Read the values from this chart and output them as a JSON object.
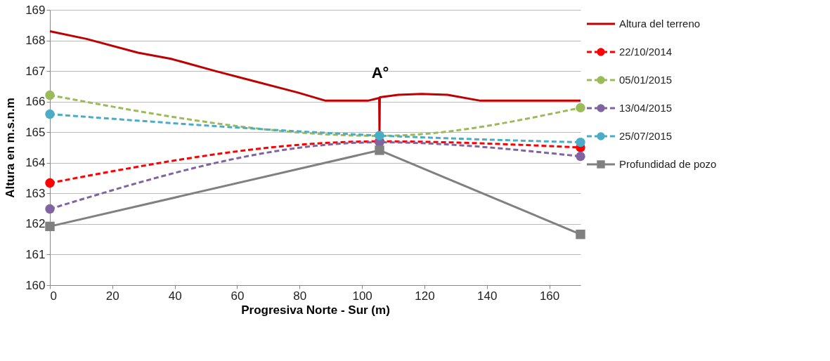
{
  "chart_data": {
    "type": "line",
    "xlabel": "Progresiva Norte - Sur (m)",
    "ylabel": "Altura en m.s.n.m",
    "xlim": [
      0,
      170
    ],
    "xticks": [
      0,
      20,
      40,
      60,
      80,
      100,
      120,
      140,
      160
    ],
    "ylim": [
      160,
      169
    ],
    "yticks": [
      160,
      161,
      162,
      163,
      164,
      165,
      166,
      167,
      168,
      169
    ],
    "grid": "y",
    "legend": "right",
    "annotations": [
      "A°"
    ],
    "series": [
      {
        "name": "Altura del terreno",
        "color": "#c00000",
        "line_style": "solid",
        "marker": "none",
        "x": [
          0,
          11.7,
          28.2,
          38.8,
          53,
          64.3,
          79.3,
          88.3,
          101.9,
          105.5,
          105.6,
          105.7,
          111.6,
          119.1,
          127.4,
          137.9,
          170
        ],
        "values": [
          168.3,
          168.05,
          167.6,
          167.4,
          167.0,
          166.7,
          166.3,
          166.03,
          166.03,
          166.12,
          164.9,
          166.14,
          166.22,
          166.25,
          166.22,
          166.03,
          166.03
        ]
      },
      {
        "name": "22/10/2014",
        "color": "#ff0000",
        "line_style": "dashed",
        "marker": "circle",
        "x": [
          0,
          105.6,
          170
        ],
        "values": [
          163.34,
          164.7,
          164.5
        ]
      },
      {
        "name": "05/01/2015",
        "color": "#9bbb59",
        "line_style": "dashed",
        "marker": "circle",
        "x": [
          0,
          105.6,
          170
        ],
        "values": [
          166.21,
          164.88,
          165.8
        ]
      },
      {
        "name": "13/04/2015",
        "color": "#8064a2",
        "line_style": "dashed",
        "marker": "circle",
        "x": [
          0,
          105.6,
          170
        ],
        "values": [
          162.49,
          164.67,
          164.21
        ]
      },
      {
        "name": "25/07/2015",
        "color": "#4bacc6",
        "line_style": "dashed",
        "marker": "circle",
        "x": [
          0,
          105.6,
          170
        ],
        "values": [
          165.59,
          164.89,
          164.67
        ]
      },
      {
        "name": "Profundidad de pozo",
        "color": "#808080",
        "line_style": "solid",
        "marker": "square",
        "x": [
          0,
          105.6,
          170
        ],
        "values": [
          161.92,
          164.41,
          161.66
        ]
      }
    ]
  }
}
